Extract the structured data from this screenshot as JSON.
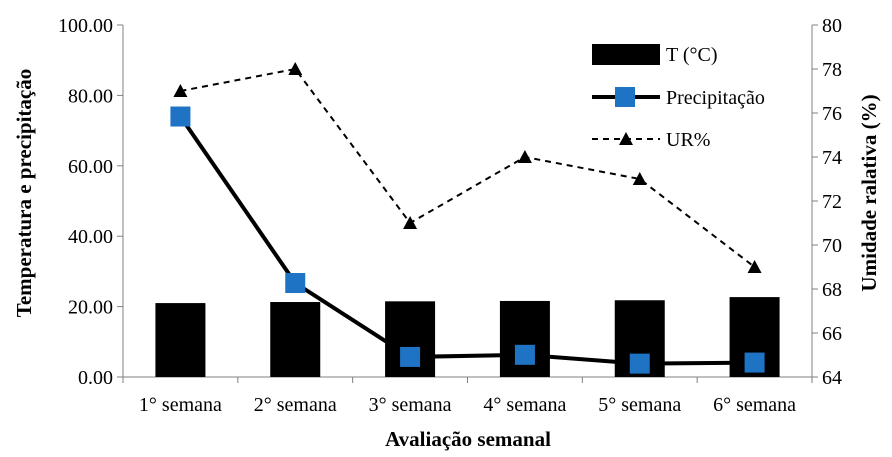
{
  "chart_data": {
    "type": "bar",
    "categories": [
      "1° semana",
      "2° semana",
      "3° semana",
      "4° semana",
      "5° semana",
      "6° semana"
    ],
    "xlabel": "Avaliação semanal",
    "ylabel": "Temperatura e precipitação",
    "y2label": "Umidade ralativa (%)",
    "ylim": [
      0,
      100
    ],
    "y2lim": [
      64,
      80
    ],
    "yticks": [
      "0.00",
      "20.00",
      "40.00",
      "60.00",
      "80.00",
      "100.00"
    ],
    "y2ticks": [
      "64",
      "66",
      "68",
      "70",
      "72",
      "74",
      "76",
      "78",
      "80"
    ],
    "grid": false,
    "legend_position": "top-right",
    "series": [
      {
        "name": "T (°C)",
        "kind": "bar",
        "axis": "left",
        "color": "#000000",
        "values": [
          21.0,
          21.3,
          21.5,
          21.6,
          21.8,
          22.7
        ]
      },
      {
        "name": "Precipitação",
        "kind": "line",
        "axis": "left",
        "color": "#000000",
        "marker": "square",
        "marker_color": "#1f73c4",
        "values": [
          74.0,
          26.7,
          5.7,
          6.3,
          3.8,
          4.1
        ]
      },
      {
        "name": "UR%",
        "kind": "line",
        "axis": "right",
        "color": "#000000",
        "dash": true,
        "marker": "triangle",
        "values": [
          77,
          78,
          71,
          74,
          73,
          69
        ]
      }
    ]
  }
}
